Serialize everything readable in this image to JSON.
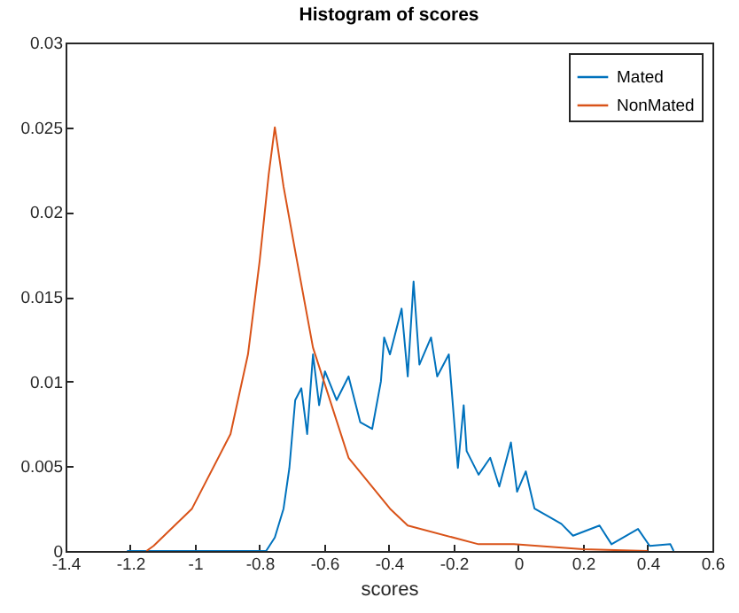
{
  "chart_data": {
    "type": "line",
    "title": "Histogram of scores",
    "xlabel": "scores",
    "xlim": [
      -1.4,
      0.6
    ],
    "xticks": [
      -1.4,
      -1.2,
      -1,
      -0.8,
      -0.6,
      -0.4,
      -0.2,
      0,
      0.2,
      0.4,
      0.6
    ],
    "ylim": [
      0,
      0.03
    ],
    "yticks": [
      0,
      0.005,
      0.01,
      0.015,
      0.02,
      0.025,
      0.03
    ],
    "legend": "top right",
    "grid": false,
    "series": [
      {
        "name": "Mated",
        "color": "#0072bd",
        "x": [
          -1.21,
          -0.78,
          -0.753,
          -0.726,
          -0.708,
          -0.69,
          -0.671,
          -0.653,
          -0.635,
          -0.616,
          -0.598,
          -0.562,
          -0.525,
          -0.489,
          -0.452,
          -0.425,
          -0.415,
          -0.397,
          -0.361,
          -0.342,
          -0.324,
          -0.306,
          -0.27,
          -0.251,
          -0.215,
          -0.187,
          -0.169,
          -0.16,
          -0.123,
          -0.087,
          -0.059,
          -0.023,
          -0.004,
          0.023,
          0.05,
          0.096,
          0.133,
          0.169,
          0.251,
          0.288,
          0.37,
          0.406,
          0.47,
          0.48
        ],
        "values": [
          0,
          0,
          0.0008,
          0.0025,
          0.0049,
          0.0089,
          0.0096,
          0.0069,
          0.0116,
          0.0086,
          0.0106,
          0.0089,
          0.0103,
          0.0076,
          0.0072,
          0.01,
          0.0126,
          0.0116,
          0.0143,
          0.0103,
          0.0159,
          0.011,
          0.0126,
          0.0103,
          0.0116,
          0.0049,
          0.0086,
          0.0059,
          0.0045,
          0.0055,
          0.0038,
          0.0064,
          0.0035,
          0.0047,
          0.0025,
          0.002,
          0.0016,
          0.0009,
          0.0015,
          0.0004,
          0.0013,
          0.0003,
          0.0004,
          0
        ]
      },
      {
        "name": "NonMated",
        "color": "#d95319",
        "x": [
          -1.15,
          -1.128,
          -1.009,
          -0.89,
          -0.836,
          -0.8,
          -0.772,
          -0.753,
          -0.726,
          -0.69,
          -0.635,
          -0.525,
          -0.397,
          -0.342,
          -0.123,
          -0.014,
          0.2,
          0.4
        ],
        "values": [
          0,
          0.0003,
          0.0025,
          0.0069,
          0.0116,
          0.0171,
          0.0222,
          0.025,
          0.0215,
          0.0177,
          0.012,
          0.0055,
          0.0025,
          0.0015,
          0.0004,
          0.0004,
          0.0001,
          0
        ]
      }
    ]
  }
}
